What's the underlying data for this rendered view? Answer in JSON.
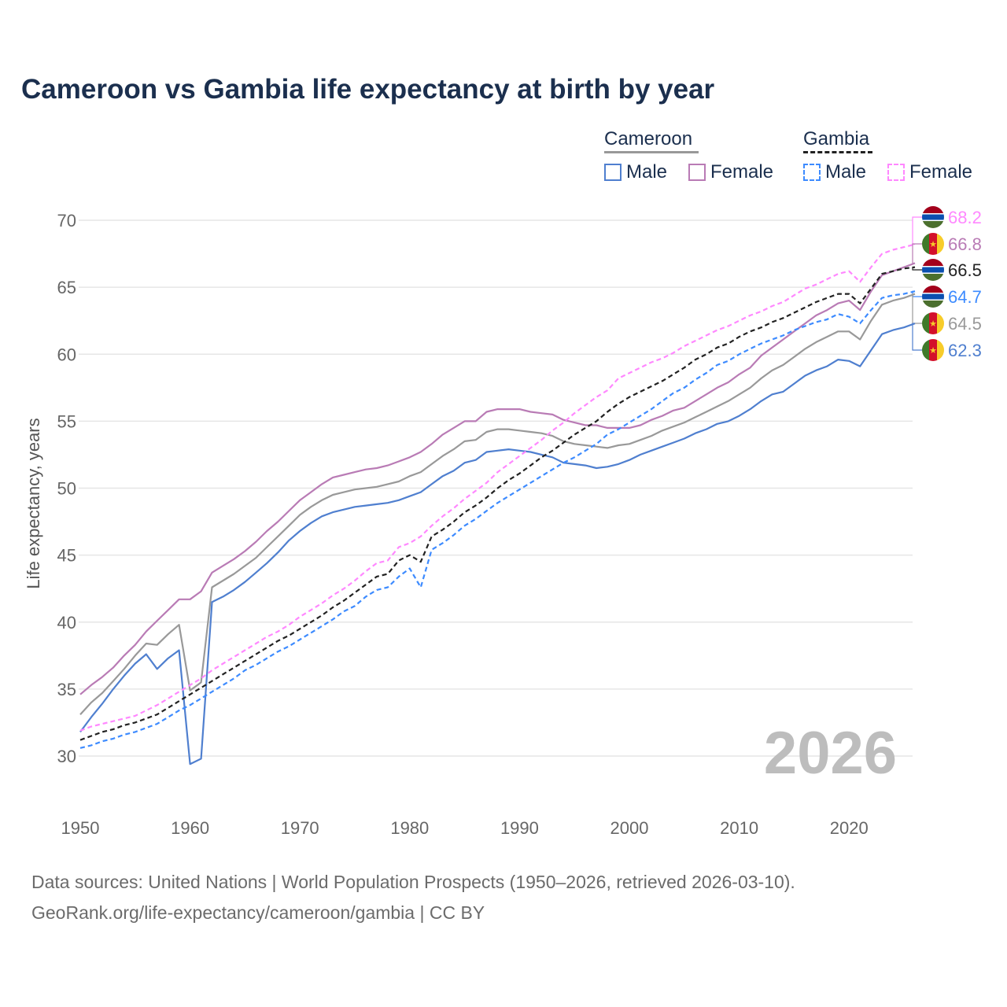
{
  "chart_data": {
    "type": "line",
    "title": "Cameroon vs Gambia life expectancy at birth by year",
    "xlabel": "",
    "ylabel": "Life expectancy, years",
    "xlim": [
      1950,
      2026
    ],
    "ylim": [
      27,
      71
    ],
    "xticks": [
      1950,
      1960,
      1970,
      1980,
      1990,
      2000,
      2010,
      2020
    ],
    "yticks": [
      30,
      35,
      40,
      45,
      50,
      55,
      60,
      65,
      70
    ],
    "grid": true,
    "watermark_year": "2026",
    "legend": {
      "placement": "top-right",
      "groups": [
        {
          "name": "Cameroon",
          "color": "#999999",
          "dash": false,
          "items": [
            "Male",
            "Female"
          ]
        },
        {
          "name": "Gambia",
          "color": "#222222",
          "dash": true,
          "items": [
            "Male",
            "Female"
          ]
        }
      ]
    },
    "x_start": 1950,
    "series": [
      {
        "name": "Cameroon Male",
        "country": "cameroon",
        "color": "#4f7fcf",
        "dash": false,
        "end_label": "62.3",
        "values": [
          31.8,
          32.9,
          33.9,
          35.0,
          36.0,
          36.9,
          37.6,
          36.5,
          37.3,
          37.9,
          29.4,
          29.8,
          41.5,
          41.9,
          42.4,
          43.0,
          43.7,
          44.4,
          45.2,
          46.1,
          46.8,
          47.4,
          47.9,
          48.2,
          48.4,
          48.6,
          48.7,
          48.8,
          48.9,
          49.1,
          49.4,
          49.7,
          50.3,
          50.9,
          51.3,
          51.9,
          52.1,
          52.7,
          52.8,
          52.9,
          52.8,
          52.7,
          52.5,
          52.3,
          51.9,
          51.8,
          51.7,
          51.5,
          51.6,
          51.8,
          52.1,
          52.5,
          52.8,
          53.1,
          53.4,
          53.7,
          54.1,
          54.4,
          54.8,
          55.0,
          55.4,
          55.9,
          56.5,
          57.0,
          57.2,
          57.8,
          58.4,
          58.8,
          59.1,
          59.6,
          59.5,
          59.1,
          60.3,
          61.5,
          61.8,
          62.0,
          62.3
        ]
      },
      {
        "name": "Cameroon Female",
        "country": "cameroon",
        "color": "#b97bb5",
        "dash": false,
        "end_label": "66.8",
        "values": [
          34.6,
          35.3,
          35.9,
          36.6,
          37.5,
          38.3,
          39.3,
          40.1,
          40.9,
          41.7,
          41.7,
          42.3,
          43.7,
          44.2,
          44.7,
          45.3,
          46.0,
          46.8,
          47.5,
          48.3,
          49.1,
          49.7,
          50.3,
          50.8,
          51.0,
          51.2,
          51.4,
          51.5,
          51.7,
          52.0,
          52.3,
          52.7,
          53.3,
          54.0,
          54.5,
          55.0,
          55.0,
          55.7,
          55.9,
          55.9,
          55.9,
          55.7,
          55.6,
          55.5,
          55.1,
          54.9,
          54.7,
          54.7,
          54.5,
          54.5,
          54.5,
          54.7,
          55.1,
          55.4,
          55.8,
          56.0,
          56.5,
          57.0,
          57.5,
          57.9,
          58.5,
          59.0,
          59.9,
          60.5,
          61.1,
          61.7,
          62.3,
          62.9,
          63.3,
          63.8,
          64.0,
          63.3,
          64.7,
          65.9,
          66.2,
          66.5,
          66.8
        ]
      },
      {
        "name": "Cameroon",
        "country": "cameroon",
        "color": "#999999",
        "dash": false,
        "end_label": "64.5",
        "values": [
          33.1,
          34.0,
          34.7,
          35.6,
          36.5,
          37.5,
          38.4,
          38.3,
          39.1,
          39.8,
          34.9,
          35.5,
          42.6,
          43.1,
          43.6,
          44.2,
          44.8,
          45.6,
          46.4,
          47.2,
          48.0,
          48.6,
          49.1,
          49.5,
          49.7,
          49.9,
          50.0,
          50.1,
          50.3,
          50.5,
          50.9,
          51.2,
          51.8,
          52.4,
          52.9,
          53.5,
          53.6,
          54.2,
          54.4,
          54.4,
          54.3,
          54.2,
          54.1,
          53.9,
          53.5,
          53.3,
          53.2,
          53.1,
          53.0,
          53.2,
          53.3,
          53.6,
          53.9,
          54.3,
          54.6,
          54.9,
          55.3,
          55.7,
          56.1,
          56.5,
          57.0,
          57.5,
          58.2,
          58.8,
          59.2,
          59.8,
          60.4,
          60.9,
          61.3,
          61.7,
          61.7,
          61.1,
          62.5,
          63.7,
          64.0,
          64.2,
          64.5
        ]
      },
      {
        "name": "Gambia Male",
        "country": "gambia",
        "color": "#3d8bff",
        "dash": true,
        "end_label": "64.7",
        "values": [
          30.6,
          30.8,
          31.1,
          31.3,
          31.6,
          31.8,
          32.1,
          32.4,
          32.9,
          33.4,
          33.8,
          34.3,
          34.8,
          35.3,
          35.8,
          36.4,
          36.8,
          37.3,
          37.8,
          38.2,
          38.7,
          39.2,
          39.7,
          40.2,
          40.8,
          41.2,
          41.9,
          42.4,
          42.6,
          43.4,
          44.0,
          42.6,
          45.4,
          45.9,
          46.5,
          47.2,
          47.7,
          48.3,
          48.9,
          49.4,
          49.9,
          50.4,
          50.9,
          51.4,
          51.9,
          52.3,
          52.8,
          53.3,
          54.0,
          54.4,
          54.9,
          55.4,
          55.9,
          56.5,
          57.1,
          57.5,
          58.1,
          58.6,
          59.2,
          59.5,
          60.0,
          60.4,
          60.8,
          61.1,
          61.4,
          61.8,
          62.1,
          62.4,
          62.6,
          63.0,
          62.8,
          62.3,
          63.3,
          64.2,
          64.4,
          64.5,
          64.7
        ]
      },
      {
        "name": "Gambia Female",
        "country": "gambia",
        "color": "#ff88ff",
        "dash": true,
        "end_label": "68.2",
        "values": [
          31.9,
          32.2,
          32.4,
          32.6,
          32.8,
          33.0,
          33.4,
          33.8,
          34.3,
          34.8,
          35.3,
          35.8,
          36.4,
          36.9,
          37.4,
          37.9,
          38.4,
          38.9,
          39.3,
          39.8,
          40.4,
          40.9,
          41.4,
          42.0,
          42.5,
          43.1,
          43.8,
          44.4,
          44.6,
          45.6,
          45.9,
          46.4,
          47.2,
          47.9,
          48.5,
          49.2,
          49.8,
          50.4,
          51.2,
          51.8,
          52.4,
          53.0,
          53.6,
          54.3,
          54.9,
          55.6,
          56.2,
          56.8,
          57.3,
          58.2,
          58.6,
          59.0,
          59.4,
          59.7,
          60.1,
          60.6,
          61.0,
          61.4,
          61.8,
          62.1,
          62.5,
          62.9,
          63.2,
          63.6,
          63.9,
          64.4,
          64.9,
          65.2,
          65.6,
          66.0,
          66.2,
          65.4,
          66.5,
          67.5,
          67.8,
          68.0,
          68.2
        ]
      },
      {
        "name": "Gambia",
        "country": "gambia",
        "color": "#222222",
        "dash": true,
        "end_label": "66.5",
        "values": [
          31.2,
          31.5,
          31.8,
          32.0,
          32.3,
          32.5,
          32.8,
          33.1,
          33.6,
          34.1,
          34.6,
          35.1,
          35.6,
          36.1,
          36.6,
          37.1,
          37.6,
          38.1,
          38.6,
          39.0,
          39.5,
          40.0,
          40.5,
          41.1,
          41.6,
          42.2,
          42.8,
          43.4,
          43.6,
          44.6,
          45.0,
          44.5,
          46.4,
          46.9,
          47.5,
          48.2,
          48.7,
          49.3,
          50.0,
          50.6,
          51.1,
          51.7,
          52.3,
          52.8,
          53.4,
          54.0,
          54.5,
          55.0,
          55.7,
          56.3,
          56.8,
          57.2,
          57.6,
          58.0,
          58.5,
          59.0,
          59.6,
          60.0,
          60.5,
          60.8,
          61.3,
          61.7,
          62.0,
          62.4,
          62.7,
          63.1,
          63.5,
          63.9,
          64.2,
          64.5,
          64.5,
          63.8,
          64.9,
          66.0,
          66.2,
          66.4,
          66.5
        ]
      }
    ]
  },
  "footer": {
    "line1": "Data sources: United Nations | World Population Prospects (1950–2026, retrieved 2026-03-10).",
    "line2": "GeoRank.org/life-expectancy/cameroon/gambia | CC BY"
  }
}
